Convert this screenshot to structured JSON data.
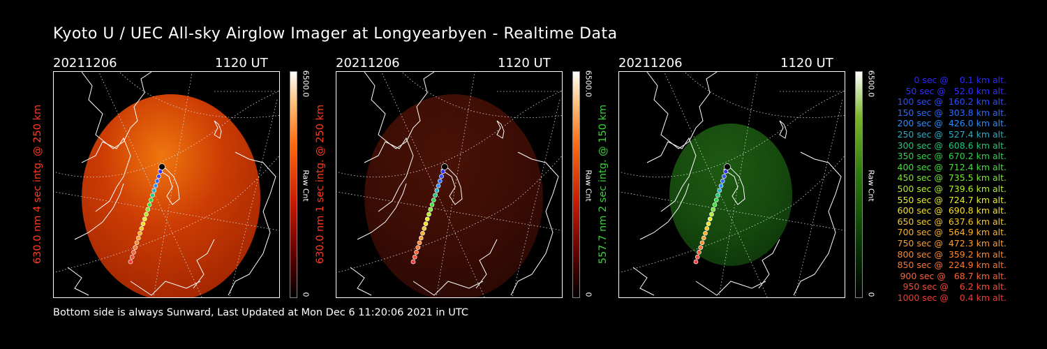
{
  "title": "Kyoto U / UEC All-sky Airglow Imager at Longyearbyen - Realtime Data",
  "footer": "Bottom side is always Sunward, Last Updated at Mon Dec  6 11:20:06 2021 in UTC",
  "panels": [
    {
      "date": "20211206",
      "time": "1120 UT",
      "ylabel": "630.0 nm 4 sec intg. @ 250 km",
      "label_color": "#ff3b1f",
      "cb_max": "6500.0",
      "cb_min": "0",
      "cb_label": "Raw Cnt",
      "colormap": "red",
      "intensity": 1.0
    },
    {
      "date": "20211206",
      "time": "1120 UT",
      "ylabel": "630.0 nm 1 sec intg. @ 250 km",
      "label_color": "#ff3b1f",
      "cb_max": "6500.0",
      "cb_min": "0",
      "cb_label": "Raw Cnt",
      "colormap": "red",
      "intensity": 0.28
    },
    {
      "date": "20211206",
      "time": "1120 UT",
      "ylabel": "557.7 nm 2 sec intg. @ 150 km",
      "label_color": "#3cd23c",
      "cb_max": "6500.0",
      "cb_min": "0",
      "cb_label": "Raw Cnt",
      "colormap": "green",
      "intensity": 0.35
    }
  ],
  "legend": [
    {
      "text": "0 sec @    0.1 km alt.",
      "color": "#2a2aff"
    },
    {
      "text": "50 sec @   52.0 km alt.",
      "color": "#3030ff"
    },
    {
      "text": "100 sec @  160.2 km alt.",
      "color": "#2f4dff"
    },
    {
      "text": "150 sec @  303.8 km alt.",
      "color": "#2d6bff"
    },
    {
      "text": "200 sec @  426.0 km alt.",
      "color": "#2a8fff"
    },
    {
      "text": "250 sec @  527.4 km alt.",
      "color": "#25b0c8"
    },
    {
      "text": "300 sec @  608.6 km alt.",
      "color": "#22c87a"
    },
    {
      "text": "350 sec @  670.2 km alt.",
      "color": "#2ad44a"
    },
    {
      "text": "400 sec @  712.4 km alt.",
      "color": "#42e03a"
    },
    {
      "text": "450 sec @  735.5 km alt.",
      "color": "#7ae832"
    },
    {
      "text": "500 sec @  739.6 km alt.",
      "color": "#b4ef2a"
    },
    {
      "text": "550 sec @  724.7 km alt.",
      "color": "#e6f028"
    },
    {
      "text": "600 sec @  690.8 km alt.",
      "color": "#f5e028"
    },
    {
      "text": "650 sec @  637.6 km alt.",
      "color": "#f8c82a"
    },
    {
      "text": "700 sec @  564.9 km alt.",
      "color": "#f9b22c"
    },
    {
      "text": "750 sec @  472.3 km alt.",
      "color": "#fa9e30"
    },
    {
      "text": "800 sec @  359.2 km alt.",
      "color": "#fa8a32"
    },
    {
      "text": "850 sec @  224.9 km alt.",
      "color": "#fa7634"
    },
    {
      "text": "900 sec @   68.7 km alt.",
      "color": "#f96236"
    },
    {
      "text": "950 sec @    6.2 km alt.",
      "color": "#f84e36"
    },
    {
      "text": "1000 sec @    0.4 km alt.",
      "color": "#f53a36"
    }
  ]
}
